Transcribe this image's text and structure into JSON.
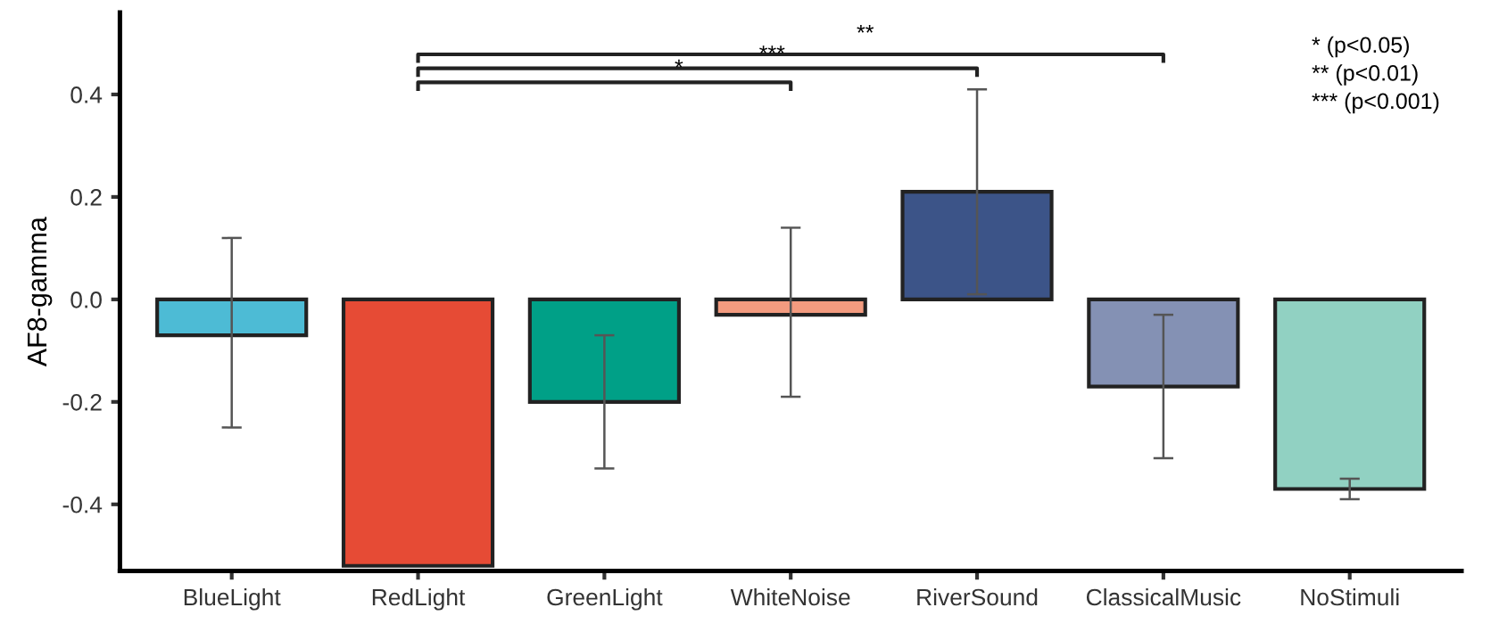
{
  "chart_data": {
    "type": "bar",
    "ylabel": "AF8-gamma",
    "categories": [
      "BlueLight",
      "RedLight",
      "GreenLight",
      "WhiteNoise",
      "RiverSound",
      "ClassicalMusic",
      "NoStimuli"
    ],
    "values": [
      -0.07,
      -0.52,
      -0.2,
      -0.03,
      0.21,
      -0.17,
      -0.37
    ],
    "colors": [
      "#4dbbd5",
      "#e64b35",
      "#00a087",
      "#f39b7f",
      "#3c5488",
      "#8491b4",
      "#91d1c2"
    ],
    "errors": [
      [
        -0.25,
        0.12
      ],
      null,
      [
        -0.33,
        -0.07
      ],
      [
        -0.19,
        0.14
      ],
      [
        0.01,
        0.41
      ],
      [
        -0.31,
        -0.03
      ],
      [
        -0.39,
        -0.35
      ]
    ],
    "ylim": [
      -0.53,
      0.56
    ],
    "yticks": [
      {
        "value": -0.4,
        "label": "-0.4"
      },
      {
        "value": -0.2,
        "label": "-0.2"
      },
      {
        "value": 0.0,
        "label": "0.0"
      },
      {
        "value": 0.2,
        "label": "0.2"
      },
      {
        "value": 0.4,
        "label": "0.4"
      }
    ],
    "annotations": [
      "*",
      "***",
      "**",
      "* (p<0.05)",
      "** (p<0.01)",
      "*** (p<0.001)"
    ],
    "grid": false,
    "legend": false
  }
}
